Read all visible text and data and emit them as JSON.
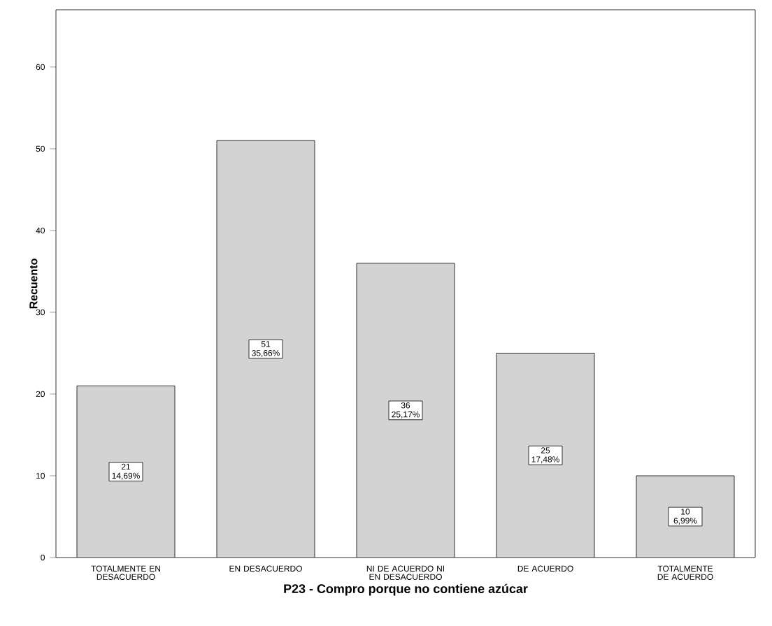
{
  "chart_data": {
    "type": "bar",
    "xlabel": "P23 - Compro porque no contiene azúcar",
    "ylabel": "Recuento",
    "categories": [
      "TOTALMENTE EN DESACUERDO",
      "EN DESACUERDO",
      "NI DE ACUERDO NI EN DESACUERDO",
      "DE ACUERDO",
      "TOTALMENTE DE ACUERDO"
    ],
    "values": [
      21,
      51,
      36,
      25,
      10
    ],
    "value_labels": [
      "21 14,69%",
      "51 35,66%",
      "36 25,17%",
      "25 17,48%",
      "10 6,99%"
    ],
    "color": "#d3d3d3",
    "ylim": [
      0,
      67
    ],
    "yticks": [
      0,
      10,
      20,
      30,
      40,
      50,
      60
    ]
  }
}
